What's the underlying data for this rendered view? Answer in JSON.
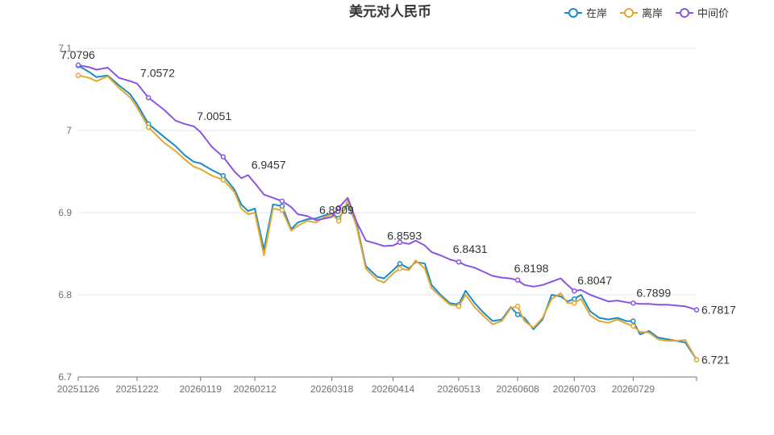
{
  "chart_data": {
    "type": "line",
    "title": "美元对人民币",
    "ylim": [
      6.7,
      7.1
    ],
    "ytick_labels": [
      "6.7",
      "6.8",
      "6.9",
      "7",
      "7.1"
    ],
    "yticks": [
      6.7,
      6.8,
      6.9,
      7.0,
      7.1
    ],
    "x_start": "20251126",
    "x_end": "20260826",
    "xtick_labels": [
      "20251126",
      "20251222",
      "20260119",
      "20260212",
      "20260318",
      "20260414",
      "20260513",
      "20260608",
      "20260703",
      "20260729"
    ],
    "legend_position": "top-right",
    "grid": true,
    "series": [
      {
        "name": "在岸",
        "color": "#1a8cc4",
        "x": [
          "20251126",
          "20251201",
          "20251204",
          "20251209",
          "20251214",
          "20251219",
          "20251222",
          "20251227",
          "20260103",
          "20260108",
          "20260112",
          "20260116",
          "20260119",
          "20260124",
          "20260129",
          "20260203",
          "20260206",
          "20260209",
          "20260212",
          "20260216",
          "20260220",
          "20260224",
          "20260228",
          "20260303",
          "20260307",
          "20260311",
          "20260315",
          "20260318",
          "20260321",
          "20260325",
          "20260329",
          "20260402",
          "20260407",
          "20260410",
          "20260414",
          "20260417",
          "20260421",
          "20260424",
          "20260428",
          "20260501",
          "20260505",
          "20260509",
          "20260513",
          "20260516",
          "20260520",
          "20260524",
          "20260528",
          "20260601",
          "20260605",
          "20260608",
          "20260611",
          "20260615",
          "20260619",
          "20260623",
          "20260627",
          "20260630",
          "20260703",
          "20260706",
          "20260710",
          "20260714",
          "20260718",
          "20260722",
          "20260726",
          "20260729",
          "20260801",
          "20260805",
          "20260809",
          "20260813",
          "20260817",
          "20260821",
          "20260826"
        ],
        "values": [
          7.079,
          7.071,
          7.065,
          7.067,
          7.055,
          7.044,
          7.032,
          7.008,
          6.992,
          6.981,
          6.97,
          6.962,
          6.96,
          6.952,
          6.945,
          6.928,
          6.91,
          6.902,
          6.905,
          6.855,
          6.91,
          6.908,
          6.88,
          6.888,
          6.892,
          6.893,
          6.897,
          6.899,
          6.893,
          6.91,
          6.885,
          6.835,
          6.822,
          6.82,
          6.83,
          6.838,
          6.832,
          6.84,
          6.838,
          6.812,
          6.8,
          6.79,
          6.788,
          6.805,
          6.79,
          6.778,
          6.768,
          6.77,
          6.785,
          6.776,
          6.772,
          6.758,
          6.77,
          6.8,
          6.798,
          6.792,
          6.795,
          6.8,
          6.78,
          6.772,
          6.77,
          6.772,
          6.768,
          6.768,
          6.752,
          6.756,
          6.748,
          6.746,
          6.744,
          6.742,
          6.721
        ]
      },
      {
        "name": "离岸",
        "color": "#e3a733",
        "x": [
          "20251126",
          "20251201",
          "20251204",
          "20251209",
          "20251214",
          "20251219",
          "20251222",
          "20251227",
          "20260103",
          "20260108",
          "20260112",
          "20260116",
          "20260119",
          "20260124",
          "20260129",
          "20260203",
          "20260206",
          "20260209",
          "20260212",
          "20260216",
          "20260220",
          "20260224",
          "20260228",
          "20260303",
          "20260307",
          "20260311",
          "20260315",
          "20260318",
          "20260321",
          "20260325",
          "20260329",
          "20260402",
          "20260407",
          "20260410",
          "20260414",
          "20260417",
          "20260421",
          "20260424",
          "20260428",
          "20260501",
          "20260505",
          "20260509",
          "20260513",
          "20260516",
          "20260520",
          "20260524",
          "20260528",
          "20260601",
          "20260605",
          "20260608",
          "20260611",
          "20260615",
          "20260619",
          "20260623",
          "20260627",
          "20260630",
          "20260703",
          "20260706",
          "20260710",
          "20260714",
          "20260718",
          "20260722",
          "20260726",
          "20260729",
          "20260801",
          "20260805",
          "20260809",
          "20260813",
          "20260817",
          "20260821",
          "20260826"
        ],
        "values": [
          7.067,
          7.064,
          7.06,
          7.066,
          7.052,
          7.04,
          7.028,
          7.004,
          6.985,
          6.975,
          6.965,
          6.956,
          6.953,
          6.945,
          6.94,
          6.925,
          6.905,
          6.898,
          6.9,
          6.848,
          6.905,
          6.903,
          6.878,
          6.884,
          6.89,
          6.888,
          6.895,
          6.898,
          6.89,
          6.915,
          6.882,
          6.832,
          6.818,
          6.815,
          6.826,
          6.832,
          6.83,
          6.842,
          6.832,
          6.808,
          6.798,
          6.788,
          6.786,
          6.8,
          6.785,
          6.774,
          6.764,
          6.768,
          6.784,
          6.786,
          6.768,
          6.76,
          6.772,
          6.795,
          6.802,
          6.79,
          6.79,
          6.795,
          6.775,
          6.768,
          6.766,
          6.77,
          6.765,
          6.762,
          6.755,
          6.754,
          6.746,
          6.744,
          6.744,
          6.745,
          6.721
        ]
      },
      {
        "name": "中间价",
        "color": "#8a55e6",
        "x": [
          "20251126",
          "20251201",
          "20251204",
          "20251209",
          "20251214",
          "20251219",
          "20251222",
          "20251227",
          "20260103",
          "20260108",
          "20260112",
          "20260116",
          "20260119",
          "20260124",
          "20260129",
          "20260203",
          "20260206",
          "20260209",
          "20260212",
          "20260216",
          "20260220",
          "20260224",
          "20260228",
          "20260303",
          "20260307",
          "20260311",
          "20260315",
          "20260318",
          "20260321",
          "20260325",
          "20260329",
          "20260402",
          "20260407",
          "20260410",
          "20260414",
          "20260417",
          "20260421",
          "20260424",
          "20260428",
          "20260501",
          "20260505",
          "20260509",
          "20260513",
          "20260516",
          "20260520",
          "20260524",
          "20260528",
          "20260601",
          "20260605",
          "20260608",
          "20260611",
          "20260615",
          "20260619",
          "20260623",
          "20260627",
          "20260630",
          "20260703",
          "20260706",
          "20260710",
          "20260714",
          "20260718",
          "20260722",
          "20260726",
          "20260729",
          "20260801",
          "20260805",
          "20260809",
          "20260813",
          "20260817",
          "20260821",
          "20260826"
        ],
        "values": [
          7.0796,
          7.077,
          7.074,
          7.0765,
          7.064,
          7.06,
          7.0572,
          7.04,
          7.025,
          7.012,
          7.008,
          7.0051,
          6.998,
          6.98,
          6.968,
          6.95,
          6.942,
          6.9457,
          6.936,
          6.922,
          6.918,
          6.914,
          6.907,
          6.898,
          6.896,
          6.8909,
          6.893,
          6.895,
          6.906,
          6.918,
          6.888,
          6.866,
          6.862,
          6.8593,
          6.86,
          6.864,
          6.862,
          6.866,
          6.86,
          6.852,
          6.848,
          6.8431,
          6.84,
          6.836,
          6.833,
          6.828,
          6.823,
          6.821,
          6.8198,
          6.818,
          6.812,
          6.81,
          6.812,
          6.816,
          6.82,
          6.812,
          6.8047,
          6.806,
          6.8,
          6.796,
          6.792,
          6.793,
          6.791,
          6.7899,
          6.789,
          6.789,
          6.788,
          6.788,
          6.787,
          6.786,
          6.7817
        ]
      }
    ],
    "point_labels": [
      {
        "date": "20251126",
        "value": 7.0796,
        "text": "7.0796"
      },
      {
        "date": "20251222",
        "value": 7.0572,
        "text": "7.0572"
      },
      {
        "date": "20260116",
        "value": 7.0051,
        "text": "7.0051"
      },
      {
        "date": "20260209",
        "value": 6.9457,
        "text": "6.9457"
      },
      {
        "date": "20260311",
        "value": 6.8909,
        "text": "6.8909"
      },
      {
        "date": "20260410",
        "value": 6.8593,
        "text": "6.8593"
      },
      {
        "date": "20260509",
        "value": 6.8431,
        "text": "6.8431"
      },
      {
        "date": "20260605",
        "value": 6.8198,
        "text": "6.8198"
      },
      {
        "date": "20260703",
        "value": 6.8047,
        "text": "6.8047"
      },
      {
        "date": "20260729",
        "value": 6.7899,
        "text": "6.7899"
      },
      {
        "date": "20260826",
        "value": 6.7817,
        "text": "6.7817"
      },
      {
        "date": "20260826",
        "value": 6.721,
        "text": "6.721"
      }
    ]
  }
}
